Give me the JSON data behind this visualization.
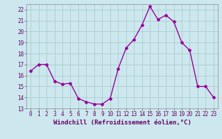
{
  "x": [
    0,
    1,
    2,
    3,
    4,
    5,
    6,
    7,
    8,
    9,
    10,
    11,
    12,
    13,
    14,
    15,
    16,
    17,
    18,
    19,
    20,
    21,
    22,
    23
  ],
  "y": [
    16.4,
    17.0,
    17.0,
    15.5,
    15.2,
    15.3,
    13.9,
    13.6,
    13.4,
    13.4,
    13.9,
    16.6,
    18.5,
    19.3,
    20.6,
    22.3,
    21.1,
    21.5,
    20.9,
    19.0,
    18.3,
    15.0,
    15.0,
    14.0
  ],
  "line_color": "#990099",
  "marker": "D",
  "marker_size": 2.0,
  "background_color": "#cce8ee",
  "grid_color": "#aacccc",
  "xlabel": "Windchill (Refroidissement éolien,°C)",
  "ylabel": "",
  "ylim": [
    13,
    22.5
  ],
  "xlim": [
    -0.5,
    23.5
  ],
  "yticks": [
    13,
    14,
    15,
    16,
    17,
    18,
    19,
    20,
    21,
    22
  ],
  "xticks": [
    0,
    1,
    2,
    3,
    4,
    5,
    6,
    7,
    8,
    9,
    10,
    11,
    12,
    13,
    14,
    15,
    16,
    17,
    18,
    19,
    20,
    21,
    22,
    23
  ],
  "tick_fontsize": 5.5,
  "xlabel_fontsize": 6.5,
  "line_width": 1.0
}
